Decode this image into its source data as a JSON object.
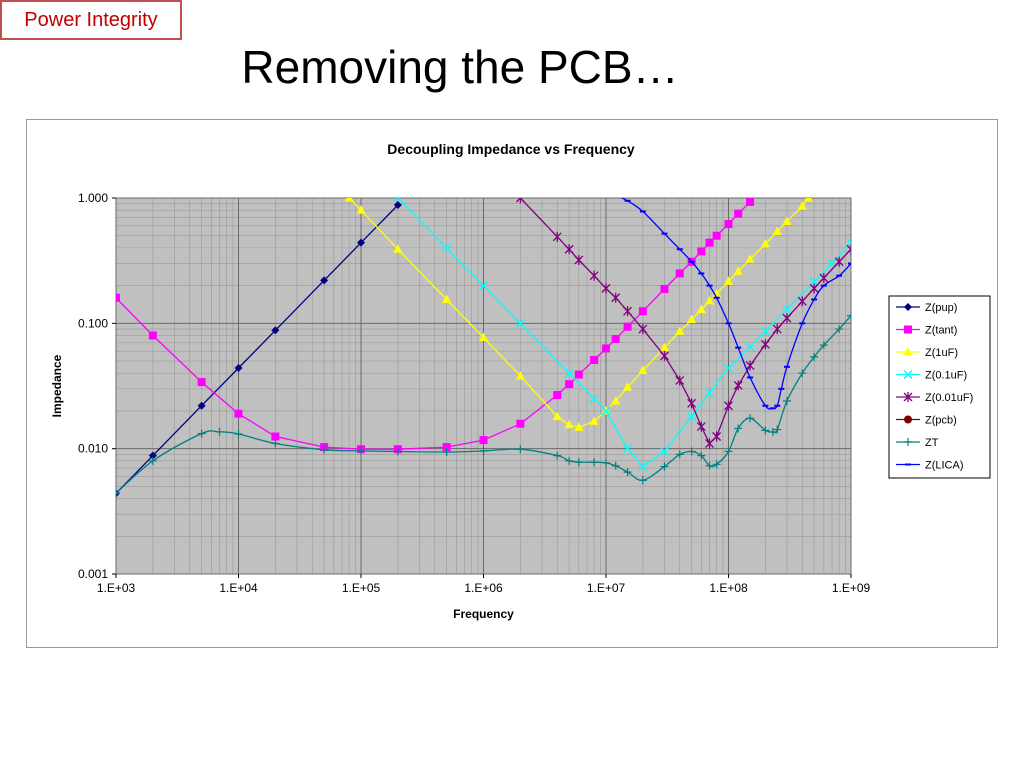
{
  "slide": {
    "badge": "Power Integrity",
    "title": "Removing the PCB…"
  },
  "chart_data": {
    "type": "line",
    "title": "Decoupling Impedance vs Frequency",
    "xlabel": "Frequency",
    "ylabel": "Impedance",
    "x_scale": "log",
    "y_scale": "log",
    "xlim": [
      1000,
      1000000000
    ],
    "ylim": [
      0.001,
      1.0
    ],
    "x_ticks": [
      1000,
      10000,
      100000,
      1000000,
      10000000,
      100000000,
      1000000000
    ],
    "x_tick_labels": [
      "1.E+03",
      "1.E+04",
      "1.E+05",
      "1.E+06",
      "1.E+07",
      "1.E+08",
      "1.E+09"
    ],
    "y_ticks": [
      0.001,
      0.01,
      0.1,
      1.0
    ],
    "y_tick_labels": [
      "0.001",
      "0.010",
      "0.100",
      "1.000"
    ],
    "grid": true,
    "legend_position": "right",
    "series": [
      {
        "name": "Z(pup)",
        "color": "#000080",
        "marker": "diamond",
        "smooth": false,
        "x": [
          1000,
          2000,
          5000,
          10000,
          20000,
          50000,
          100000,
          200000
        ],
        "y": [
          0.0044,
          0.0088,
          0.022,
          0.044,
          0.088,
          0.22,
          0.44,
          0.88
        ]
      },
      {
        "name": "Z(tant)",
        "color": "#ff00ff",
        "marker": "square",
        "smooth": false,
        "x": [
          1000,
          2000,
          5000,
          10000,
          20000,
          50000,
          100000,
          200000,
          500000,
          1000000,
          2000000,
          4000000,
          5000000,
          6000000,
          8000000,
          10000000,
          12000000,
          15000000,
          20000000,
          30000000,
          40000000,
          50000000,
          60000000,
          70000000,
          80000000,
          100000000,
          120000000,
          150000000
        ],
        "y": [
          0.16,
          0.08,
          0.034,
          0.019,
          0.0125,
          0.0103,
          0.0099,
          0.0099,
          0.0103,
          0.0117,
          0.0158,
          0.0268,
          0.0327,
          0.039,
          0.051,
          0.063,
          0.075,
          0.094,
          0.125,
          0.188,
          0.25,
          0.31,
          0.375,
          0.44,
          0.5,
          0.62,
          0.75,
          0.93
        ]
      },
      {
        "name": "Z(1uF)",
        "color": "#ffff00",
        "marker": "triangle",
        "smooth": false,
        "x": [
          80000,
          100000,
          200000,
          500000,
          1000000,
          2000000,
          4000000,
          5000000,
          6000000,
          8000000,
          10000000,
          12000000,
          15000000,
          20000000,
          30000000,
          40000000,
          50000000,
          60000000,
          70000000,
          80000000,
          100000000,
          120000000,
          150000000,
          200000000,
          250000000,
          300000000,
          400000000,
          450000000
        ],
        "y": [
          1.0,
          0.8,
          0.39,
          0.155,
          0.077,
          0.038,
          0.018,
          0.0155,
          0.0148,
          0.0165,
          0.02,
          0.024,
          0.031,
          0.042,
          0.064,
          0.086,
          0.107,
          0.129,
          0.151,
          0.172,
          0.216,
          0.26,
          0.325,
          0.43,
          0.54,
          0.65,
          0.86,
          1.0
        ]
      },
      {
        "name": "Z(0.1uF)",
        "color": "#00ffff",
        "marker": "x",
        "smooth": false,
        "x": [
          200000,
          500000,
          1000000,
          2000000,
          5000000,
          8000000,
          10000000,
          15000000,
          20000000,
          30000000,
          50000000,
          70000000,
          100000000,
          150000000,
          200000000,
          300000000,
          500000000,
          700000000,
          1000000000
        ],
        "y": [
          1.0,
          0.4,
          0.2,
          0.1,
          0.04,
          0.025,
          0.02,
          0.01,
          0.0072,
          0.0095,
          0.018,
          0.028,
          0.044,
          0.065,
          0.087,
          0.13,
          0.215,
          0.3,
          0.44
        ]
      },
      {
        "name": "Z(0.01uF)",
        "color": "#800080",
        "marker": "star",
        "smooth": false,
        "x": [
          2000000,
          4000000,
          5000000,
          6000000,
          8000000,
          10000000,
          12000000,
          15000000,
          20000000,
          30000000,
          40000000,
          50000000,
          60000000,
          70000000,
          80000000,
          100000000,
          120000000,
          150000000,
          200000000,
          250000000,
          300000000,
          400000000,
          500000000,
          600000000,
          800000000,
          1000000000
        ],
        "y": [
          1.0,
          0.49,
          0.39,
          0.32,
          0.24,
          0.19,
          0.16,
          0.125,
          0.09,
          0.055,
          0.035,
          0.023,
          0.015,
          0.011,
          0.0125,
          0.022,
          0.032,
          0.046,
          0.068,
          0.09,
          0.11,
          0.15,
          0.19,
          0.23,
          0.31,
          0.39
        ]
      },
      {
        "name": "Z(pcb)",
        "color": "#800000",
        "marker": "circle",
        "smooth": false,
        "x": [],
        "y": []
      },
      {
        "name": "ZT",
        "color": "#008080",
        "marker": "plus",
        "smooth": true,
        "x": [
          1000,
          2000,
          5000,
          7000,
          10000,
          20000,
          50000,
          100000,
          200000,
          500000,
          1000000,
          2000000,
          4000000,
          5000000,
          6000000,
          8000000,
          10000000,
          12000000,
          15000000,
          20000000,
          30000000,
          40000000,
          50000000,
          60000000,
          70000000,
          80000000,
          100000000,
          120000000,
          150000000,
          200000000,
          230000000,
          250000000,
          300000000,
          400000000,
          500000000,
          600000000,
          800000000,
          1000000000
        ],
        "y": [
          0.0044,
          0.008,
          0.0132,
          0.0136,
          0.0131,
          0.011,
          0.0098,
          0.0096,
          0.0095,
          0.0094,
          0.0096,
          0.0099,
          0.0088,
          0.008,
          0.0078,
          0.0078,
          0.0077,
          0.0073,
          0.0065,
          0.0056,
          0.0072,
          0.009,
          0.0095,
          0.0088,
          0.0073,
          0.0075,
          0.0095,
          0.0145,
          0.0175,
          0.014,
          0.0136,
          0.0142,
          0.024,
          0.04,
          0.054,
          0.067,
          0.09,
          0.115
        ]
      },
      {
        "name": "Z(LICA)",
        "color": "#0000ff",
        "marker": "dash",
        "smooth": true,
        "x": [
          12000000,
          15000000,
          20000000,
          30000000,
          40000000,
          50000000,
          60000000,
          70000000,
          80000000,
          100000000,
          120000000,
          150000000,
          200000000,
          230000000,
          250000000,
          270000000,
          300000000,
          400000000,
          500000000,
          600000000,
          800000000,
          1000000000
        ],
        "y": [
          1.05,
          0.95,
          0.78,
          0.52,
          0.39,
          0.31,
          0.25,
          0.2,
          0.16,
          0.1,
          0.064,
          0.037,
          0.022,
          0.021,
          0.022,
          0.03,
          0.045,
          0.1,
          0.155,
          0.2,
          0.24,
          0.3
        ]
      }
    ]
  }
}
